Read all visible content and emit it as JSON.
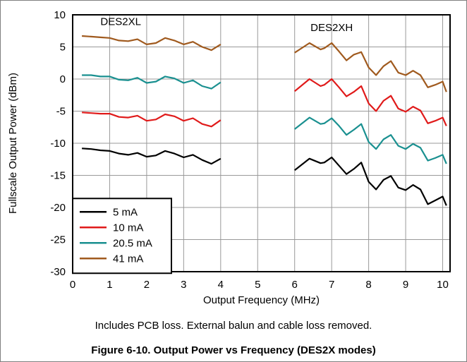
{
  "chart_data": {
    "type": "line",
    "xlabel": "Output Frequency (MHz)",
    "ylabel": "Fullscale Output Power (dBm)",
    "xlim": [
      0,
      10.2
    ],
    "ylim": [
      -30,
      10
    ],
    "xticks": [
      0,
      1,
      2,
      3,
      4,
      5,
      6,
      7,
      8,
      9,
      10
    ],
    "yticks": [
      10,
      5,
      0,
      -5,
      -10,
      -15,
      -20,
      -25,
      -30
    ],
    "grid": true,
    "legend_position": "bottom-left",
    "annotations": [
      {
        "text": "DES2XL",
        "x": 1.3,
        "y": 8.4
      },
      {
        "text": "DES2XH",
        "x": 7.0,
        "y": 7.5
      }
    ],
    "series": [
      {
        "name": "5 mA",
        "color": "#000000",
        "segments": [
          {
            "x": [
              0.25,
              0.5,
              0.75,
              1.0,
              1.25,
              1.5,
              1.75,
              2.0,
              2.25,
              2.5,
              2.75,
              3.0,
              3.25,
              3.5,
              3.75,
              4.0
            ],
            "y": [
              -10.8,
              -10.9,
              -11.1,
              -11.2,
              -11.6,
              -11.8,
              -11.5,
              -12.1,
              -11.9,
              -11.2,
              -11.6,
              -12.2,
              -11.8,
              -12.6,
              -13.2,
              -12.4
            ]
          },
          {
            "x": [
              6.0,
              6.4,
              6.7,
              6.8,
              7.0,
              7.2,
              7.4,
              7.6,
              7.8,
              8.0,
              8.2,
              8.4,
              8.6,
              8.8,
              9.0,
              9.2,
              9.4,
              9.6,
              9.8,
              10.0,
              10.1
            ],
            "y": [
              -14.2,
              -12.4,
              -13.1,
              -13.0,
              -12.2,
              -13.5,
              -14.8,
              -14.0,
              -13.0,
              -16.0,
              -17.2,
              -15.7,
              -15.1,
              -16.9,
              -17.3,
              -16.5,
              -17.2,
              -19.5,
              -18.9,
              -18.3,
              -19.7
            ]
          }
        ]
      },
      {
        "name": "10 mA",
        "color": "#e01a1a",
        "segments": [
          {
            "x": [
              0.25,
              0.5,
              0.75,
              1.0,
              1.25,
              1.5,
              1.75,
              2.0,
              2.25,
              2.5,
              2.75,
              3.0,
              3.25,
              3.5,
              3.75,
              4.0
            ],
            "y": [
              -5.2,
              -5.3,
              -5.4,
              -5.4,
              -5.9,
              -6.0,
              -5.7,
              -6.5,
              -6.3,
              -5.5,
              -5.8,
              -6.5,
              -6.1,
              -7.0,
              -7.4,
              -6.4
            ]
          },
          {
            "x": [
              6.0,
              6.4,
              6.7,
              6.8,
              7.0,
              7.2,
              7.4,
              7.6,
              7.8,
              8.0,
              8.2,
              8.4,
              8.6,
              8.8,
              9.0,
              9.2,
              9.4,
              9.6,
              9.8,
              10.0,
              10.1
            ],
            "y": [
              -1.9,
              0.0,
              -1.1,
              -0.9,
              0.0,
              -1.3,
              -2.7,
              -2.0,
              -1.1,
              -3.8,
              -5.0,
              -3.4,
              -2.6,
              -4.6,
              -5.1,
              -4.3,
              -4.9,
              -6.9,
              -6.5,
              -6.0,
              -7.3
            ]
          }
        ]
      },
      {
        "name": "20.5 mA",
        "color": "#1a9090",
        "segments": [
          {
            "x": [
              0.25,
              0.5,
              0.75,
              1.0,
              1.25,
              1.5,
              1.75,
              2.0,
              2.25,
              2.5,
              2.75,
              3.0,
              3.25,
              3.5,
              3.75,
              4.0
            ],
            "y": [
              0.6,
              0.6,
              0.4,
              0.4,
              -0.1,
              -0.2,
              0.2,
              -0.6,
              -0.4,
              0.4,
              0.1,
              -0.6,
              -0.2,
              -1.1,
              -1.5,
              -0.5
            ]
          },
          {
            "x": [
              6.0,
              6.4,
              6.7,
              6.8,
              7.0,
              7.2,
              7.4,
              7.6,
              7.8,
              8.0,
              8.2,
              8.4,
              8.6,
              8.8,
              9.0,
              9.2,
              9.4,
              9.6,
              9.8,
              10.0,
              10.1
            ],
            "y": [
              -7.8,
              -6.0,
              -7.0,
              -6.9,
              -6.1,
              -7.3,
              -8.7,
              -7.9,
              -7.0,
              -9.8,
              -10.9,
              -9.4,
              -8.7,
              -10.4,
              -10.9,
              -10.1,
              -10.7,
              -12.7,
              -12.3,
              -11.8,
              -13.2
            ]
          }
        ]
      },
      {
        "name": "41 mA",
        "color": "#a05a1e",
        "segments": [
          {
            "x": [
              0.25,
              0.5,
              0.75,
              1.0,
              1.25,
              1.5,
              1.75,
              2.0,
              2.25,
              2.5,
              2.75,
              3.0,
              3.25,
              3.5,
              3.75,
              4.0
            ],
            "y": [
              6.7,
              6.6,
              6.5,
              6.4,
              6.0,
              5.9,
              6.2,
              5.4,
              5.6,
              6.4,
              6.0,
              5.4,
              5.8,
              5.0,
              4.5,
              5.4
            ]
          },
          {
            "x": [
              6.0,
              6.4,
              6.7,
              6.8,
              7.0,
              7.2,
              7.4,
              7.6,
              7.8,
              8.0,
              8.2,
              8.4,
              8.6,
              8.8,
              9.0,
              9.2,
              9.4,
              9.6,
              9.8,
              10.0,
              10.1
            ],
            "y": [
              4.1,
              5.6,
              4.6,
              4.8,
              5.6,
              4.3,
              2.9,
              3.8,
              4.2,
              1.8,
              0.6,
              2.0,
              2.8,
              1.0,
              0.6,
              1.3,
              0.6,
              -1.3,
              -0.9,
              -0.4,
              -2.0
            ]
          }
        ]
      }
    ]
  },
  "note": "Includes PCB loss. External balun and cable loss removed.",
  "caption": "Figure 6-10. Output Power vs Frequency (DES2X modes)"
}
